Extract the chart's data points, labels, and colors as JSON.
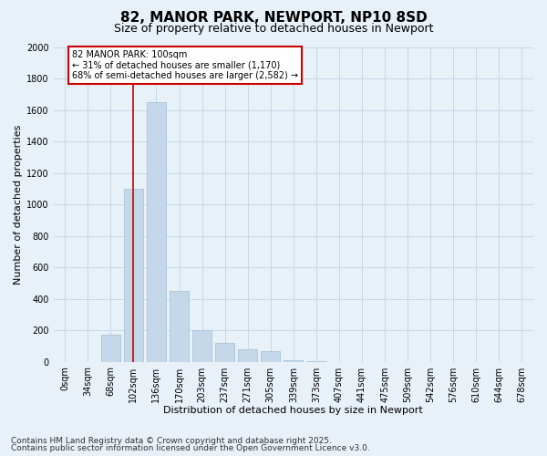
{
  "title": "82, MANOR PARK, NEWPORT, NP10 8SD",
  "subtitle": "Size of property relative to detached houses in Newport",
  "xlabel": "Distribution of detached houses by size in Newport",
  "ylabel": "Number of detached properties",
  "categories": [
    "0sqm",
    "34sqm",
    "68sqm",
    "102sqm",
    "136sqm",
    "170sqm",
    "203sqm",
    "237sqm",
    "271sqm",
    "305sqm",
    "339sqm",
    "373sqm",
    "407sqm",
    "441sqm",
    "475sqm",
    "509sqm",
    "542sqm",
    "576sqm",
    "610sqm",
    "644sqm",
    "678sqm"
  ],
  "values": [
    0,
    0,
    170,
    1100,
    1650,
    450,
    200,
    120,
    80,
    70,
    10,
    5,
    0,
    0,
    0,
    0,
    0,
    0,
    0,
    0,
    0
  ],
  "bar_color": "#c5d8ea",
  "bar_edge_color": "#a8c4d8",
  "vline_x": 3,
  "vline_color": "#cc0000",
  "annotation_text": "82 MANOR PARK: 100sqm\n← 31% of detached houses are smaller (1,170)\n68% of semi-detached houses are larger (2,582) →",
  "annotation_box_facecolor": "#ffffff",
  "annotation_box_edgecolor": "#cc0000",
  "ylim": [
    0,
    2000
  ],
  "yticks": [
    0,
    200,
    400,
    600,
    800,
    1000,
    1200,
    1400,
    1600,
    1800,
    2000
  ],
  "grid_color": "#c8d8e8",
  "background_color": "#e8f0f8",
  "footer1": "Contains HM Land Registry data © Crown copyright and database right 2025.",
  "footer2": "Contains public sector information licensed under the Open Government Licence v3.0.",
  "title_fontsize": 11,
  "subtitle_fontsize": 9,
  "axis_label_fontsize": 8,
  "tick_fontsize": 7,
  "annotation_fontsize": 7,
  "footer_fontsize": 6.5
}
